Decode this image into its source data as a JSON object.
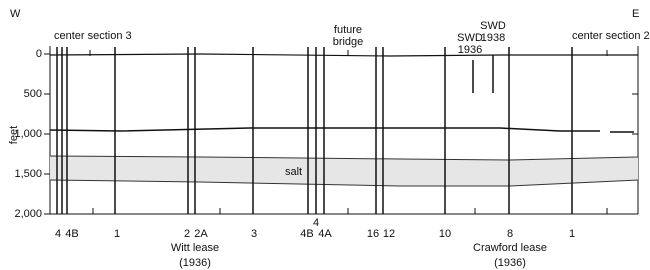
{
  "compass": {
    "west": "W",
    "east": "E"
  },
  "axis": {
    "label": "feet",
    "ticks": [
      "0",
      "500",
      "1,000",
      "1,500",
      "2,000"
    ]
  },
  "top_labels": {
    "center_section_3": "center section 3",
    "future_bridge": [
      "future",
      "bridge"
    ],
    "swd_1936": [
      "SWD",
      "1936"
    ],
    "swd_1938": [
      "SWD",
      "1938"
    ],
    "center_section_2": "center section 2"
  },
  "salt": "salt",
  "wells": [
    "4",
    "4B",
    "1",
    "2",
    "2A",
    "3",
    "4B",
    "4",
    "4A",
    "16",
    "12",
    "10",
    "8",
    "1"
  ],
  "leases": [
    {
      "name": "Witt lease",
      "year": "(1936)"
    },
    {
      "name": "Crawford lease",
      "year": "(1936)"
    }
  ]
}
